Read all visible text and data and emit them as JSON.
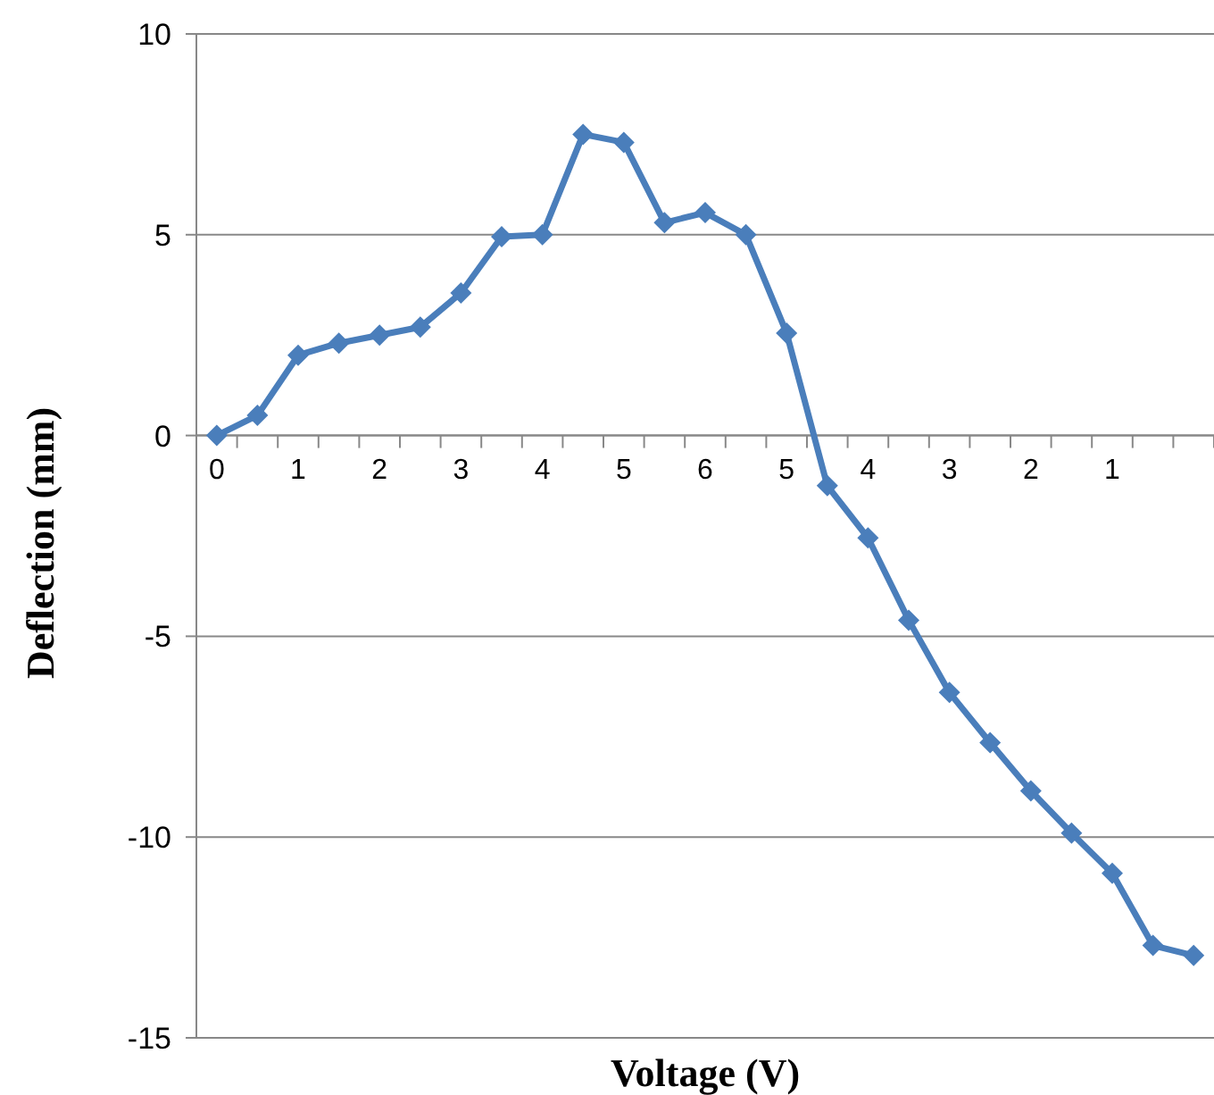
{
  "chart_data": {
    "type": "line",
    "xlabel": "Voltage (V)",
    "ylabel": "Deflection (mm)",
    "categories": [
      "0",
      null,
      "1",
      null,
      "2",
      null,
      "3",
      null,
      "4",
      null,
      "5",
      null,
      "6",
      null,
      "5",
      null,
      "4",
      null,
      "3",
      null,
      "2",
      null,
      "1",
      null,
      null
    ],
    "series": [
      {
        "color": "#4a7ebb",
        "values": [
          0,
          0.5,
          2.0,
          2.3,
          2.5,
          2.7,
          3.55,
          4.95,
          5.0,
          7.5,
          7.3,
          5.3,
          5.55,
          5.0,
          2.55,
          -1.25,
          -2.55,
          -4.6,
          -6.4,
          -7.65,
          -8.85,
          -9.9,
          -10.9,
          -12.7,
          -12.95
        ]
      }
    ],
    "ylim": [
      -15,
      10
    ],
    "yticks": [
      -15,
      -10,
      -5,
      0,
      5,
      10
    ],
    "grid": "y",
    "marker": "diamond",
    "line_style": "solid"
  }
}
